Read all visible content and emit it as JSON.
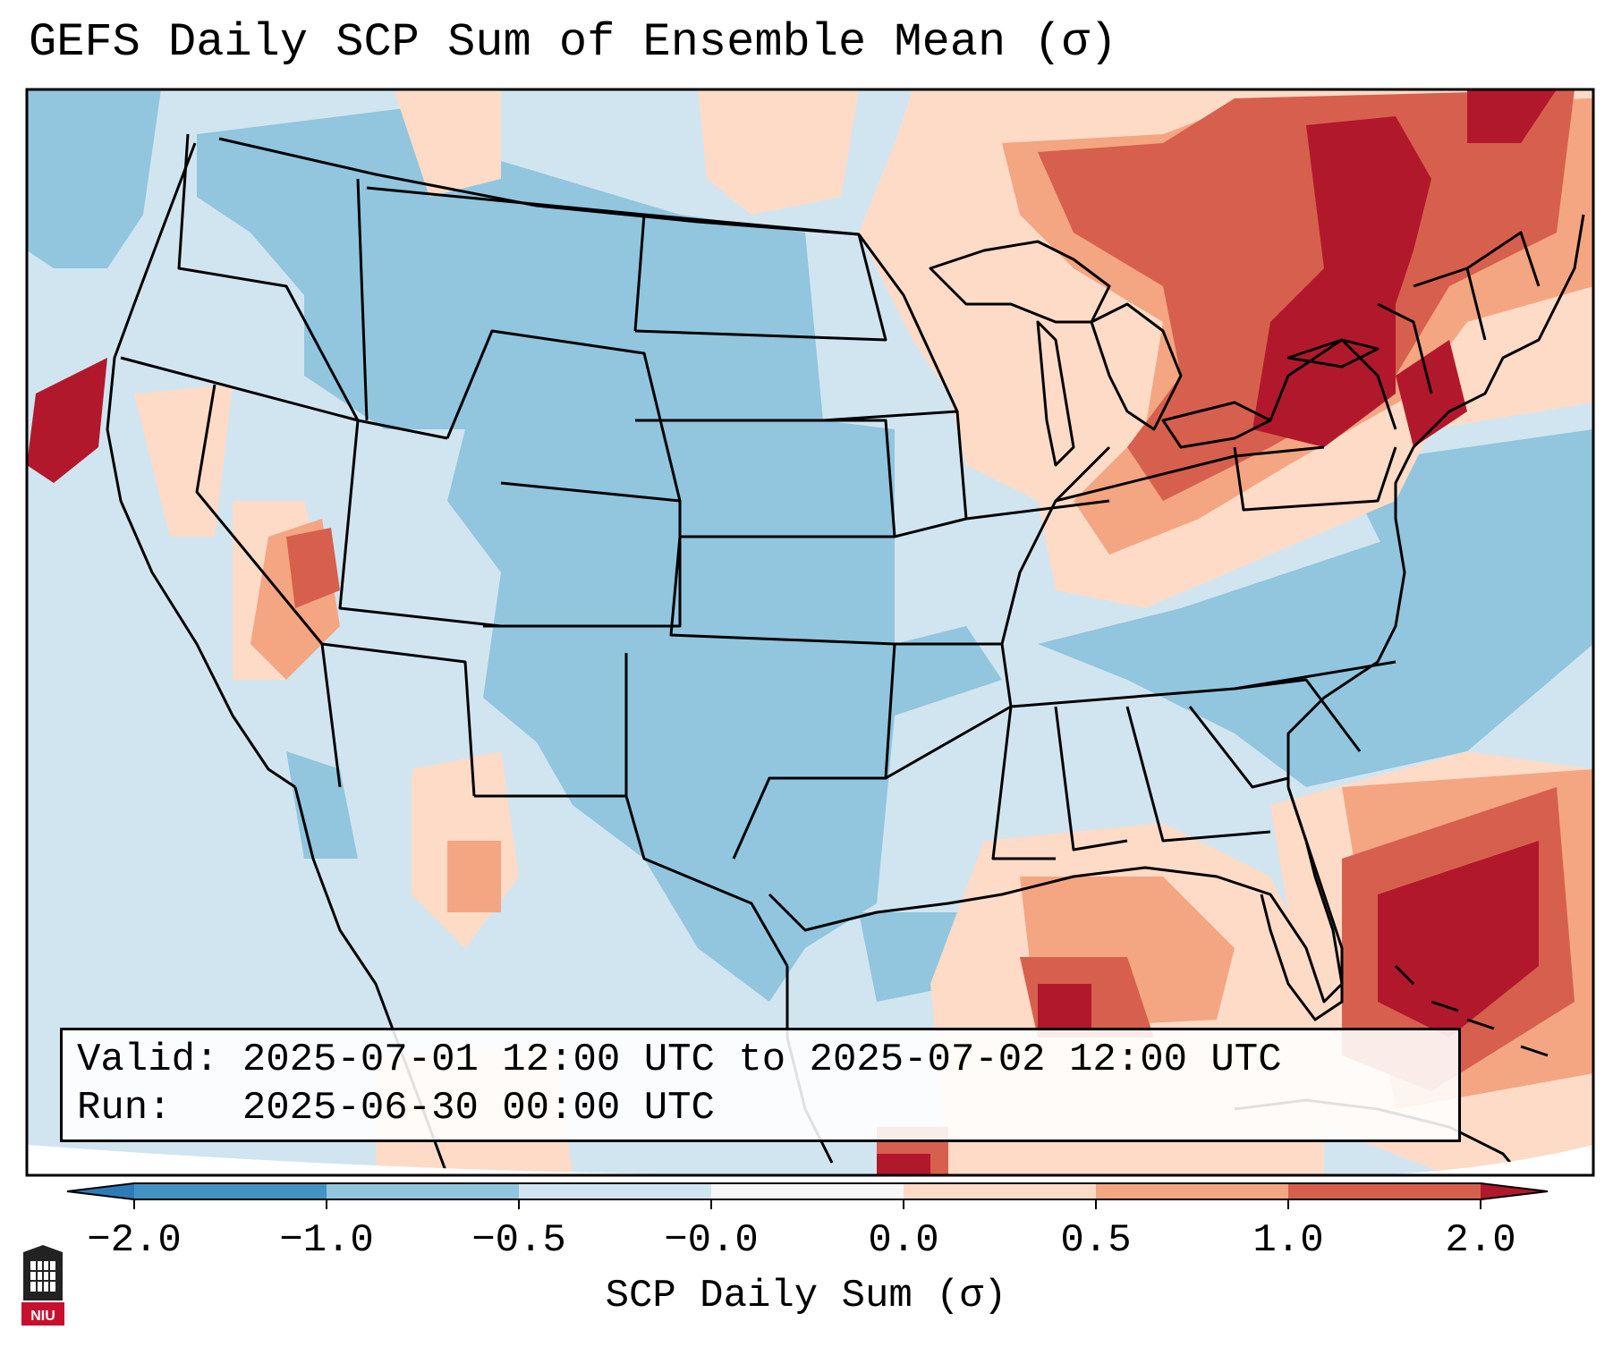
{
  "title": "GEFS Daily SCP Sum of Ensemble Mean (σ)",
  "info": {
    "valid_line": "Valid: 2025-07-01 12:00 UTC to 2025-07-02 12:00 UTC",
    "run_line": "Run:   2025-06-30 00:00 UTC"
  },
  "colorbar": {
    "label": "SCP Daily Sum (σ)",
    "ticks": [
      "−2.0",
      "−1.0",
      "−0.5",
      "−0.0",
      "0.0",
      "0.5",
      "1.0",
      "2.0"
    ],
    "colors": [
      "#2c7bb6",
      "#4393c3",
      "#92c5de",
      "#d1e5f0",
      "#f7f7f7",
      "#fddbc7",
      "#f4a582",
      "#d6604d",
      "#b2182b"
    ]
  },
  "logo": {
    "text": "NIU",
    "icon": "niu-logo-icon"
  },
  "map": {
    "projection": "Lambert Conformal - CONUS",
    "background_color": "#d1e5f0",
    "ocean_color": "#d1e5f0"
  }
}
